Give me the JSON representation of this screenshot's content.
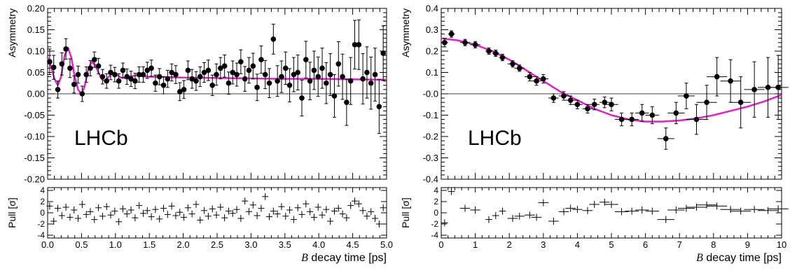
{
  "chart_data": [
    {
      "type": "scatter",
      "title": "",
      "watermark": "LHCb",
      "xlabel_prefix": "B",
      "xlabel_rest": " decay time [ps]",
      "ylabel": "Asymmetry",
      "pull_ylabel": "Pull  [σ]",
      "xlim": [
        0,
        5
      ],
      "ylim": [
        -0.2,
        0.2
      ],
      "pull_ylim": [
        -4.5,
        4.5
      ],
      "x_ticks": [
        "0.0",
        "0.5",
        "1.0",
        "1.5",
        "2.0",
        "2.5",
        "3.0",
        "3.5",
        "4.0",
        "4.5",
        "5.0"
      ],
      "y_ticks": [
        "-0.20",
        "-0.15",
        "-0.10",
        "-0.05",
        "0.00",
        "0.05",
        "0.10",
        "0.15",
        "0.20"
      ],
      "pull_ticks": [
        "-4",
        "-2",
        "0",
        "2",
        "4"
      ],
      "colors": {
        "fit": "#e020c8",
        "data": "#000000"
      },
      "data": {
        "x": [
          0.03,
          0.09,
          0.15,
          0.21,
          0.27,
          0.33,
          0.39,
          0.45,
          0.51,
          0.57,
          0.63,
          0.69,
          0.75,
          0.81,
          0.87,
          0.93,
          0.99,
          1.05,
          1.11,
          1.17,
          1.23,
          1.29,
          1.35,
          1.41,
          1.47,
          1.53,
          1.59,
          1.65,
          1.71,
          1.77,
          1.83,
          1.89,
          1.95,
          2.01,
          2.07,
          2.13,
          2.19,
          2.25,
          2.31,
          2.37,
          2.43,
          2.49,
          2.55,
          2.61,
          2.67,
          2.73,
          2.79,
          2.85,
          2.91,
          2.97,
          3.03,
          3.09,
          3.15,
          3.21,
          3.27,
          3.33,
          3.39,
          3.45,
          3.51,
          3.57,
          3.63,
          3.69,
          3.75,
          3.81,
          3.87,
          3.93,
          3.99,
          4.05,
          4.11,
          4.17,
          4.23,
          4.29,
          4.35,
          4.41,
          4.47,
          4.53,
          4.59,
          4.65,
          4.71,
          4.77,
          4.83,
          4.89,
          4.95
        ],
        "y": [
          0.075,
          0.062,
          0.01,
          0.07,
          0.105,
          0.06,
          0.022,
          0.045,
          0.0,
          0.045,
          0.06,
          0.08,
          0.065,
          0.04,
          0.03,
          0.05,
          0.045,
          0.03,
          0.055,
          0.04,
          0.035,
          0.03,
          0.045,
          0.045,
          0.055,
          0.06,
          0.025,
          0.04,
          0.02,
          0.035,
          0.05,
          0.045,
          0.005,
          0.01,
          0.055,
          0.035,
          0.03,
          0.04,
          0.05,
          0.055,
          0.02,
          0.045,
          0.06,
          0.065,
          0.025,
          0.05,
          0.045,
          0.075,
          0.035,
          0.055,
          0.065,
          0.015,
          0.08,
          0.045,
          0.025,
          0.128,
          0.03,
          0.04,
          0.06,
          0.02,
          0.045,
          0.05,
          -0.01,
          0.08,
          0.03,
          0.055,
          0.04,
          0.06,
          0.025,
          0.045,
          -0.005,
          0.07,
          0.04,
          -0.02,
          0.03,
          0.115,
          0.115,
          0.035,
          0.05,
          0.025,
          0.045,
          -0.03,
          0.095
        ],
        "yerr": [
          0.03,
          0.028,
          0.02,
          0.026,
          0.024,
          0.022,
          0.02,
          0.02,
          0.018,
          0.018,
          0.018,
          0.018,
          0.018,
          0.017,
          0.017,
          0.017,
          0.017,
          0.017,
          0.017,
          0.018,
          0.018,
          0.018,
          0.018,
          0.018,
          0.019,
          0.019,
          0.019,
          0.019,
          0.02,
          0.02,
          0.02,
          0.021,
          0.021,
          0.021,
          0.022,
          0.022,
          0.022,
          0.023,
          0.023,
          0.024,
          0.024,
          0.025,
          0.025,
          0.026,
          0.026,
          0.027,
          0.027,
          0.028,
          0.029,
          0.03,
          0.03,
          0.031,
          0.032,
          0.033,
          0.034,
          0.035,
          0.036,
          0.037,
          0.038,
          0.039,
          0.04,
          0.041,
          0.042,
          0.043,
          0.044,
          0.045,
          0.046,
          0.047,
          0.048,
          0.049,
          0.05,
          0.052,
          0.053,
          0.054,
          0.055,
          0.057,
          0.058,
          0.059,
          0.06,
          0.061,
          0.062,
          0.063,
          0.064
        ]
      },
      "fit": {
        "x": [
          0,
          0.05,
          0.1,
          0.15,
          0.2,
          0.25,
          0.3,
          0.35,
          0.4,
          0.45,
          0.5,
          0.55,
          0.6,
          0.65,
          0.7,
          0.75,
          0.8,
          0.85,
          0.9,
          0.95,
          1.0,
          1.05,
          1.1,
          1.15,
          1.2,
          1.3,
          1.4,
          1.5,
          1.6,
          1.8,
          2.0,
          2.5,
          3.0,
          3.5,
          4.0,
          4.5,
          5.0
        ],
        "y": [
          0.085,
          0.065,
          0.035,
          0.02,
          0.04,
          0.09,
          0.108,
          0.085,
          0.04,
          0.01,
          -0.002,
          0.02,
          0.058,
          0.075,
          0.068,
          0.05,
          0.034,
          0.03,
          0.04,
          0.047,
          0.046,
          0.041,
          0.037,
          0.037,
          0.04,
          0.043,
          0.041,
          0.04,
          0.04,
          0.039,
          0.038,
          0.037,
          0.036,
          0.035,
          0.035,
          0.034,
          0.033
        ]
      },
      "pull": [
        1.2,
        -1.5,
        0.8,
        -0.5,
        1.0,
        -0.8,
        0.5,
        -1.0,
        1.5,
        -0.3,
        0.2,
        -1.2,
        0.9,
        -0.6,
        1.1,
        -0.4,
        0.3,
        -1.6,
        0.7,
        -0.2,
        0.5,
        -0.9,
        1.3,
        -0.1,
        0.4,
        -0.7,
        0.6,
        -1.1,
        0.8,
        -0.3,
        1.2,
        -0.5,
        0.1,
        -0.8,
        0.9,
        -0.2,
        1.5,
        -1.3,
        0.4,
        -0.6,
        0.7,
        -0.4,
        1.0,
        -0.9,
        0.3,
        -0.1,
        0.6,
        -1.0,
        2.1,
        0.2,
        1.4,
        -0.5,
        0.8,
        2.9,
        -0.7,
        0.3,
        -0.2,
        1.1,
        -0.6,
        0.5,
        -1.2,
        0.9,
        -0.3,
        1.6,
        0.2,
        -0.8,
        1.0,
        -0.4,
        0.6,
        -1.5,
        0.3,
        0.8,
        -0.2,
        -0.9,
        1.3,
        2.1,
        1.6,
        0.4,
        -0.6,
        0.2,
        -1.0,
        -2.0,
        0.9
      ]
    },
    {
      "type": "scatter",
      "title": "",
      "watermark": "LHCb",
      "xlabel_prefix": "B",
      "xlabel_rest": " decay time [ps]",
      "ylabel": "Asymmetry",
      "pull_ylabel": "Pull  [σ]",
      "xlim": [
        0,
        10
      ],
      "ylim": [
        -0.4,
        0.4
      ],
      "pull_ylim": [
        -4.5,
        4.5
      ],
      "x_ticks": [
        "0",
        "1",
        "2",
        "3",
        "4",
        "5",
        "6",
        "7",
        "8",
        "9",
        "10"
      ],
      "y_ticks": [
        "-0.4",
        "-0.3",
        "-0.2",
        "-0.1",
        "-0.0",
        "0.1",
        "0.2",
        "0.3",
        "0.4"
      ],
      "pull_ticks": [
        "-4",
        "-2",
        "0",
        "2",
        "4"
      ],
      "colors": {
        "fit": "#e020c8",
        "data": "#000000"
      },
      "data": {
        "x": [
          0.1,
          0.3,
          0.7,
          1.0,
          1.4,
          1.6,
          1.8,
          2.1,
          2.3,
          2.6,
          2.8,
          3.0,
          3.3,
          3.6,
          3.8,
          4.0,
          4.3,
          4.5,
          4.8,
          5.0,
          5.3,
          5.6,
          5.9,
          6.2,
          6.6,
          6.9,
          7.2,
          7.5,
          7.8,
          8.1,
          8.5,
          8.8,
          9.2,
          9.6,
          9.9
        ],
        "xerr": [
          0.1,
          0.1,
          0.15,
          0.15,
          0.1,
          0.1,
          0.1,
          0.15,
          0.15,
          0.15,
          0.15,
          0.15,
          0.15,
          0.15,
          0.15,
          0.15,
          0.15,
          0.15,
          0.15,
          0.2,
          0.2,
          0.2,
          0.2,
          0.2,
          0.25,
          0.25,
          0.25,
          0.3,
          0.3,
          0.3,
          0.3,
          0.3,
          0.3,
          0.3,
          0.3
        ],
        "y": [
          0.24,
          0.28,
          0.24,
          0.23,
          0.2,
          0.19,
          0.17,
          0.14,
          0.12,
          0.08,
          0.06,
          0.07,
          -0.02,
          -0.01,
          -0.03,
          -0.05,
          -0.07,
          -0.05,
          -0.04,
          -0.05,
          -0.12,
          -0.12,
          -0.09,
          -0.1,
          -0.21,
          -0.09,
          -0.01,
          -0.12,
          -0.04,
          0.08,
          0.06,
          -0.04,
          0.02,
          0.03,
          0.03
        ],
        "yerr": [
          0.02,
          0.015,
          0.015,
          0.015,
          0.015,
          0.015,
          0.015,
          0.015,
          0.015,
          0.02,
          0.02,
          0.02,
          0.02,
          0.02,
          0.02,
          0.02,
          0.02,
          0.025,
          0.025,
          0.03,
          0.03,
          0.03,
          0.04,
          0.04,
          0.05,
          0.05,
          0.06,
          0.07,
          0.08,
          0.09,
          0.1,
          0.12,
          0.13,
          0.14,
          0.15
        ]
      },
      "fit": {
        "x": [
          0,
          0.5,
          1,
          1.5,
          2,
          2.5,
          3,
          3.5,
          4,
          4.5,
          5,
          5.5,
          6,
          6.5,
          7,
          7.5,
          8,
          8.5,
          9,
          9.5,
          10
        ],
        "y": [
          0.26,
          0.25,
          0.23,
          0.2,
          0.16,
          0.11,
          0.06,
          0.01,
          -0.03,
          -0.07,
          -0.1,
          -0.12,
          -0.13,
          -0.13,
          -0.125,
          -0.115,
          -0.1,
          -0.08,
          -0.06,
          -0.035,
          -0.005
        ]
      },
      "pull": [
        -1.8,
        3.8,
        0.8,
        0.5,
        -1.2,
        -0.5,
        0.3,
        -1.0,
        -0.6,
        -0.4,
        -0.8,
        1.8,
        -1.5,
        0.2,
        0.8,
        0.6,
        0.4,
        1.5,
        1.9,
        1.5,
        0.2,
        0.3,
        0.5,
        0.3,
        -1.2,
        0.5,
        0.8,
        1.0,
        1.4,
        1.2,
        0.6,
        0.3,
        0.6,
        0.4,
        0.7
      ]
    }
  ]
}
